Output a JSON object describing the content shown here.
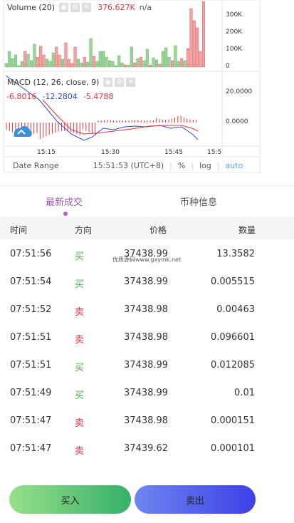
{
  "chart": {
    "volume_indicator": {
      "title": "Volume (20)",
      "value": "376.627K",
      "extra": "n/a"
    },
    "volume_axis": [
      "300K",
      "200K",
      "100K",
      "0"
    ],
    "macd_indicator": {
      "title": "MACD (12, 26, close, 9)",
      "values": [
        "-6.8016",
        "-12.2804",
        "-5.4788"
      ]
    },
    "macd_axis": [
      "20.0000",
      "0.0000"
    ],
    "time_axis": [
      "15:15",
      "15:30",
      "15:45",
      "15:5"
    ],
    "footer": {
      "date_range": "Date Range",
      "time": "15:51:53 (UTC+8)",
      "percent": "%",
      "log": "log",
      "auto": "auto"
    },
    "colors": {
      "up": "#e0333f",
      "down": "#4caf50",
      "macd_line": "#2a4dcc",
      "signal_line": "#e0333f",
      "auto_link": "#5aa6e8"
    }
  },
  "tabs": [
    "最新成交",
    "币种信息"
  ],
  "table": {
    "headers": [
      "时间",
      "方向",
      "价格",
      "数量"
    ],
    "rows": [
      {
        "time": "07:51:56",
        "side": "买",
        "price": "37438.99",
        "qty": "13.3582"
      },
      {
        "time": "07:51:54",
        "side": "买",
        "price": "37438.99",
        "qty": "0.005515"
      },
      {
        "time": "07:51:52",
        "side": "卖",
        "price": "37438.98",
        "qty": "0.00463"
      },
      {
        "time": "07:51:51",
        "side": "卖",
        "price": "37438.98",
        "qty": "0.096601"
      },
      {
        "time": "07:51:51",
        "side": "买",
        "price": "37438.99",
        "qty": "0.012085"
      },
      {
        "time": "07:51:49",
        "side": "买",
        "price": "37438.99",
        "qty": "0.01"
      },
      {
        "time": "07:51:47",
        "side": "卖",
        "price": "37438.98",
        "qty": "0.000151"
      },
      {
        "time": "07:51:47",
        "side": "卖",
        "price": "37439.62",
        "qty": "0.000101"
      }
    ]
  },
  "watermark": "优质源码www.gxymk.net",
  "actions": {
    "buy": "买入",
    "sell": "卖出"
  }
}
